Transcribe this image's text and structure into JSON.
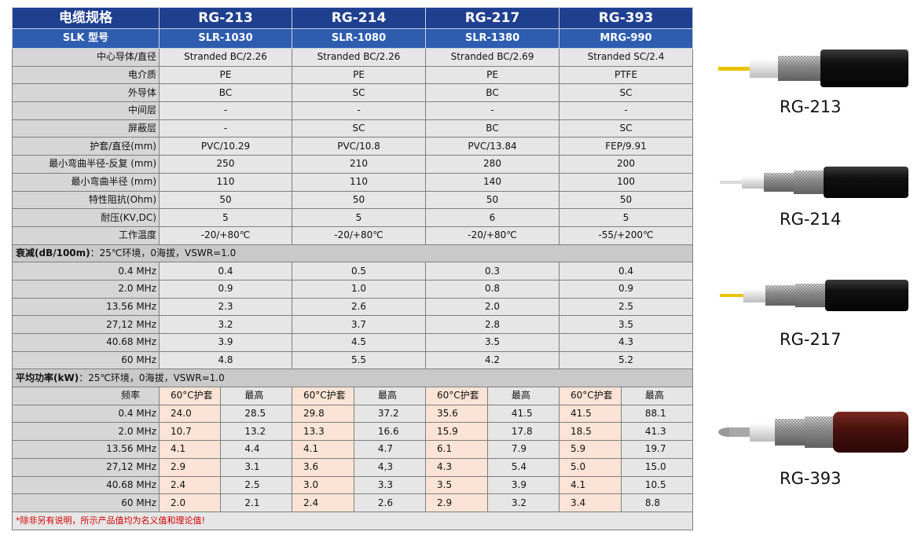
{
  "header": {
    "spec_label": "电缆规格",
    "models": [
      "RG-213",
      "RG-214",
      "RG-217",
      "RG-393"
    ],
    "slk_label": "SLK 型号",
    "slk_models": [
      "SLR-1030",
      "SLR-1080",
      "SLR-1380",
      "MRG-990"
    ]
  },
  "properties": [
    {
      "label": "中心导体/直径",
      "values": [
        "Stranded BC/2.26",
        "Stranded BC/2.26",
        "Stranded BC/2.69",
        "Stranded SC/2.4"
      ]
    },
    {
      "label": "电介质",
      "values": [
        "PE",
        "PE",
        "PE",
        "PTFE"
      ]
    },
    {
      "label": "外导体",
      "values": [
        "BC",
        "SC",
        "BC",
        "SC"
      ]
    },
    {
      "label": "中间层",
      "values": [
        "-",
        "-",
        "-",
        "-"
      ]
    },
    {
      "label": "屏蔽层",
      "values": [
        "-",
        "SC",
        "BC",
        "SC"
      ]
    },
    {
      "label": "护套/直径(mm)",
      "values": [
        "PVC/10.29",
        "PVC/10.8",
        "PVC/13.84",
        "FEP/9.91"
      ]
    },
    {
      "label": "最小弯曲半径-反复 (mm)",
      "values": [
        "250",
        "210",
        "280",
        "200"
      ]
    },
    {
      "label": "最小弯曲半径 (mm)",
      "values": [
        "110",
        "110",
        "140",
        "100"
      ]
    },
    {
      "label": "特性阻抗(Ohm)",
      "values": [
        "50",
        "50",
        "50",
        "50"
      ]
    },
    {
      "label": "耐压(KV,DC)",
      "values": [
        "5",
        "5",
        "6",
        "5"
      ]
    },
    {
      "label": "工作温度",
      "values": [
        "-20/+80℃",
        "-20/+80℃",
        "-20/+80℃",
        "-55/+200℃"
      ]
    }
  ],
  "attenuation": {
    "title_bold": "衰减(dB/100m)",
    "title_rest": "：25℃环境，0海拔，VSWR=1.0",
    "rows": [
      {
        "freq": "0.4 MHz",
        "values": [
          "0.4",
          "0.5",
          "0.3",
          "0.4"
        ]
      },
      {
        "freq": "2.0 MHz",
        "values": [
          "0.9",
          "1.0",
          "0.8",
          "0.9"
        ]
      },
      {
        "freq": "13.56 MHz",
        "values": [
          "2.3",
          "2.6",
          "2.0",
          "2.5"
        ]
      },
      {
        "freq": "27,12 MHz",
        "values": [
          "3.2",
          "3.7",
          "2.8",
          "3.5"
        ]
      },
      {
        "freq": "40.68 MHz",
        "values": [
          "3.9",
          "4.5",
          "3.5",
          "4.3"
        ]
      },
      {
        "freq": "60 MHz",
        "values": [
          "4.8",
          "5.5",
          "4.2",
          "5.2"
        ]
      }
    ]
  },
  "power": {
    "title_bold": "平均功率(kW)",
    "title_rest": "：25℃环境，0海拔，VSWR=1.0",
    "freq_label": "频率",
    "col_60c": "60°C护套",
    "col_max": "最高",
    "rows": [
      {
        "freq": "0.4 MHz",
        "values": [
          "24.0",
          "28.5",
          "29.8",
          "37.2",
          "35.6",
          "41.5",
          "41.5",
          "88.1"
        ]
      },
      {
        "freq": "2.0 MHz",
        "values": [
          "10.7",
          "13.2",
          "13.3",
          "16.6",
          "15.9",
          "17.8",
          "18.5",
          "41.3"
        ]
      },
      {
        "freq": "13.56 MHz",
        "values": [
          "4.1",
          "4.4",
          "4.1",
          "4.7",
          "6.1",
          "7.9",
          "5.9",
          "19.7"
        ]
      },
      {
        "freq": "27,12 MHz",
        "values": [
          "2.9",
          "3.1",
          "3.6",
          "4,3",
          "4.3",
          "5.4",
          "5.0",
          "15.0"
        ]
      },
      {
        "freq": "40.68 MHz",
        "values": [
          "2.4",
          "2.5",
          "3.0",
          "3.3",
          "3.5",
          "3.9",
          "4.1",
          "10.5"
        ]
      },
      {
        "freq": "60 MHz",
        "values": [
          "2.0",
          "2.1",
          "2.4",
          "2.6",
          "2.9",
          "3.2",
          "3.4",
          "8.8"
        ]
      }
    ]
  },
  "footnote": "*除非另有说明，所示产品值均为名义值和理论值!",
  "cable_captions": [
    "RG-213",
    "RG-214",
    "RG-217",
    "RG-393"
  ]
}
